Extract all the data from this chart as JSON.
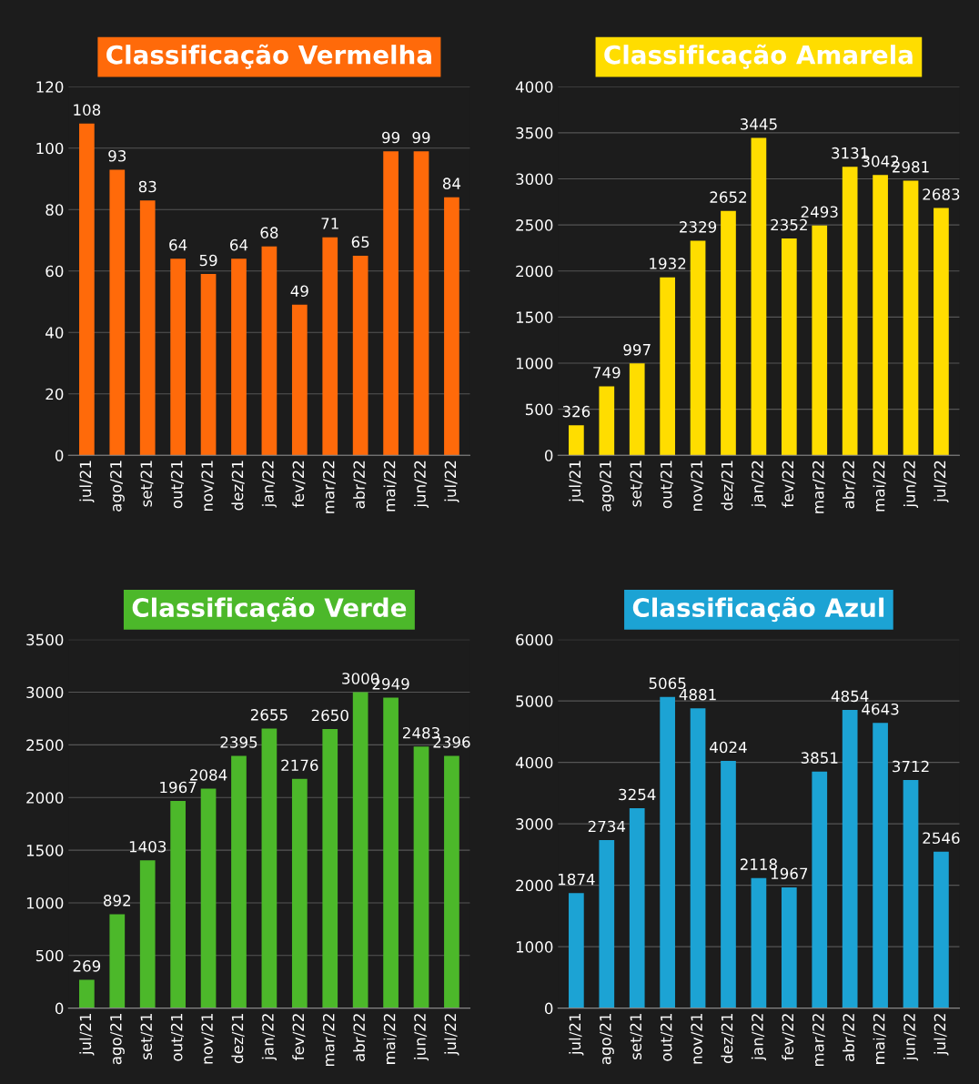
{
  "chart_data": [
    {
      "type": "bar",
      "title": "Classificação Vermelha",
      "categories": [
        "jul/21",
        "ago/21",
        "set/21",
        "out/21",
        "nov/21",
        "dez/21",
        "jan/22",
        "fev/22",
        "mar/22",
        "abr/22",
        "mai/22",
        "jun/22",
        "jul/22"
      ],
      "values": [
        108,
        93,
        83,
        64,
        59,
        64,
        68,
        49,
        71,
        65,
        99,
        99,
        84
      ],
      "color": "#ff6a0a",
      "ylim": [
        0,
        120
      ],
      "yticks": [
        0,
        20,
        40,
        60,
        80,
        100,
        120
      ],
      "grid": "y",
      "data_labels": true
    },
    {
      "type": "bar",
      "title": "Classificação Amarela",
      "categories": [
        "jul/21",
        "ago/21",
        "set/21",
        "out/21",
        "nov/21",
        "dez/21",
        "jan/22",
        "fev/22",
        "mar/22",
        "abr/22",
        "mai/22",
        "jun/22",
        "jul/22"
      ],
      "values": [
        326,
        749,
        997,
        1932,
        2329,
        2652,
        3445,
        2352,
        2493,
        3131,
        3042,
        2981,
        2683
      ],
      "color": "#ffdd00",
      "ylim": [
        0,
        4000
      ],
      "yticks": [
        0,
        500,
        1000,
        1500,
        2000,
        2500,
        3000,
        3500,
        4000
      ],
      "grid": "y",
      "data_labels": true
    },
    {
      "type": "bar",
      "title": "Classificação Verde",
      "categories": [
        "jul/21",
        "ago/21",
        "set/21",
        "out/21",
        "nov/21",
        "dez/21",
        "jan/22",
        "fev/22",
        "mar/22",
        "abr/22",
        "mai/22",
        "jun/22",
        "jul/22"
      ],
      "values": [
        269,
        892,
        1403,
        1967,
        2084,
        2395,
        2655,
        2176,
        2650,
        3000,
        2949,
        2483,
        2396
      ],
      "color": "#4cb82a",
      "ylim": [
        0,
        3500
      ],
      "yticks": [
        0,
        500,
        1000,
        1500,
        2000,
        2500,
        3000,
        3500
      ],
      "grid": "y",
      "data_labels": true
    },
    {
      "type": "bar",
      "title": "Classificação Azul",
      "categories": [
        "jul/21",
        "ago/21",
        "set/21",
        "out/21",
        "nov/21",
        "dez/21",
        "jan/22",
        "fev/22",
        "mar/22",
        "abr/22",
        "mai/22",
        "jun/22",
        "jul/22"
      ],
      "values": [
        1874,
        2734,
        3254,
        5065,
        4881,
        4024,
        2118,
        1967,
        3851,
        4854,
        4643,
        3712,
        2546
      ],
      "color": "#1ca3d4",
      "ylim": [
        0,
        6000
      ],
      "yticks": [
        0,
        1000,
        2000,
        3000,
        4000,
        5000,
        6000
      ],
      "grid": "y",
      "data_labels": true
    }
  ]
}
